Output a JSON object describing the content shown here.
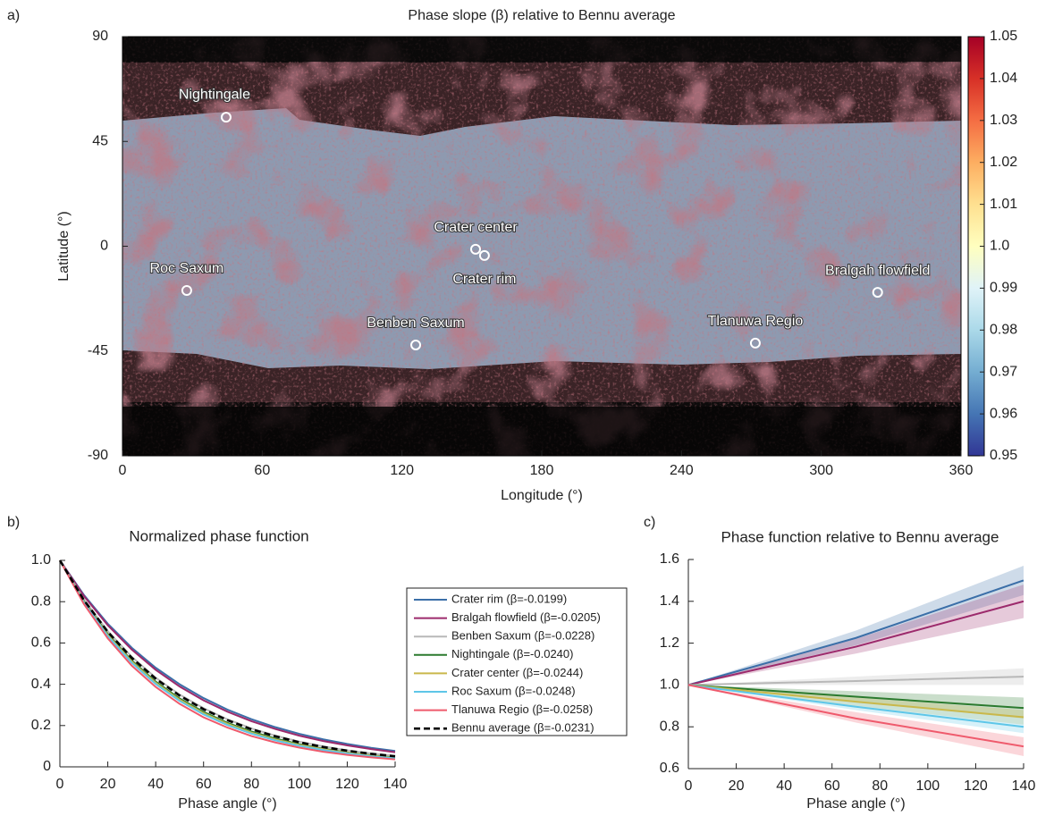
{
  "chart_data": [
    {
      "type": "map",
      "panel": "a)",
      "title": "Phase slope (β) relative to Bennu average",
      "xlabel": "Longitude (°)",
      "ylabel": "Latitude (°)",
      "xlim": [
        0,
        360
      ],
      "ylim": [
        -90,
        90
      ],
      "xticks": [
        0,
        60,
        120,
        180,
        240,
        300,
        360
      ],
      "yticks": [
        90,
        45,
        0,
        -45,
        -90
      ],
      "colormap": "RdYlBu_r",
      "clim": [
        0.95,
        1.05
      ],
      "cticks": [
        0.95,
        0.96,
        0.97,
        0.98,
        0.99,
        {
          "value": 1,
          "label": "1.0"
        },
        1.01,
        1.02,
        1.03,
        1.04,
        1.05
      ],
      "sites": {
        "labels": [
          "Nightingale",
          "Crater center",
          "Crater rim",
          "Roc Saxum",
          "Benben Saxum",
          "Tlanuwa Regio",
          "Bralgah flowfield"
        ],
        "x": [
          44.5,
          151.6,
          155.4,
          27.6,
          125.9,
          271.7,
          324.2
        ],
        "y": [
          55.4,
          -1.3,
          -4.0,
          -19.0,
          -42.4,
          -41.6,
          -19.8
        ]
      }
    },
    {
      "type": "line",
      "panel": "b)",
      "title": "Normalized phase function",
      "xlabel": "Phase angle (°)",
      "xlim": [
        0,
        140
      ],
      "ylim": [
        0,
        1
      ],
      "xticks": [
        0,
        20,
        40,
        60,
        80,
        100,
        120,
        140
      ],
      "yticks": [
        0,
        0.2,
        0.4,
        0.6,
        0.8,
        {
          "value": 1,
          "label": "1.0"
        }
      ],
      "legend": "right",
      "x": [
        0,
        10,
        20,
        30,
        40,
        50,
        60,
        70,
        80,
        90,
        100,
        110,
        120,
        130,
        140
      ],
      "series": [
        {
          "name": "Crater rim (β=-0.0199)",
          "color": "#3b6fa8",
          "values": [
            1,
            0.833,
            0.693,
            0.577,
            0.48,
            0.4,
            0.333,
            0.277,
            0.231,
            0.192,
            0.16,
            0.133,
            0.111,
            0.092,
            0.077
          ]
        },
        {
          "name": "Bralgah flowfield (β=-0.0205)",
          "color": "#9c2a6c",
          "values": [
            1,
            0.828,
            0.686,
            0.568,
            0.47,
            0.389,
            0.322,
            0.267,
            0.221,
            0.183,
            0.151,
            0.125,
            0.104,
            0.086,
            0.071
          ]
        },
        {
          "name": "Benben Saxum (β=-0.0228)",
          "color": "#b8b8b8",
          "values": [
            1,
            0.811,
            0.657,
            0.533,
            0.432,
            0.35,
            0.284,
            0.23,
            0.186,
            0.151,
            0.122,
            0.099,
            0.08,
            0.065,
            0.053
          ]
        },
        {
          "name": "Nightingale (β=-0.0240)",
          "color": "#2b7a2e",
          "values": [
            1,
            0.802,
            0.643,
            0.515,
            0.413,
            0.331,
            0.266,
            0.213,
            0.171,
            0.137,
            0.11,
            0.088,
            0.07,
            0.056,
            0.045
          ]
        },
        {
          "name": "Crater center (β=-0.0244)",
          "color": "#c9b84b",
          "values": [
            1,
            0.799,
            0.638,
            0.51,
            0.407,
            0.325,
            0.26,
            0.208,
            0.166,
            0.132,
            0.106,
            0.085,
            0.068,
            0.054,
            0.043
          ]
        },
        {
          "name": "Roc Saxum (β=-0.0248)",
          "color": "#5ec6e8",
          "values": [
            1,
            0.796,
            0.633,
            0.504,
            0.401,
            0.319,
            0.254,
            0.202,
            0.161,
            0.128,
            0.102,
            0.081,
            0.065,
            0.051,
            0.041
          ]
        },
        {
          "name": "Tlanuwa Regio (β=-0.0258)",
          "color": "#ef5a6c",
          "values": [
            1,
            0.789,
            0.622,
            0.49,
            0.387,
            0.305,
            0.24,
            0.19,
            0.149,
            0.118,
            0.093,
            0.073,
            0.058,
            0.046,
            0.036
          ]
        },
        {
          "name": "Bennu average (β=-0.0231)",
          "color": "#000000",
          "dashed": true,
          "values": [
            1,
            0.808,
            0.654,
            0.528,
            0.427,
            0.345,
            0.279,
            0.226,
            0.182,
            0.148,
            0.119,
            0.096,
            0.078,
            0.063,
            0.051
          ]
        }
      ]
    },
    {
      "type": "line",
      "panel": "c)",
      "title": "Phase function relative to Bennu average",
      "xlabel": "Phase angle (°)",
      "xlim": [
        0,
        140
      ],
      "ylim": [
        0.6,
        1.6
      ],
      "xticks": [
        0,
        20,
        40,
        60,
        80,
        100,
        120,
        140
      ],
      "yticks": [
        0.6,
        0.8,
        {
          "value": 1,
          "label": "1.0"
        },
        1.2,
        1.4,
        1.6
      ],
      "x": [
        0,
        70,
        140
      ],
      "series": [
        {
          "color": "#3b6fa8",
          "values": [
            1,
            1.225,
            1.5
          ],
          "lower": [
            1,
            1.19,
            1.43
          ],
          "upper": [
            1,
            1.26,
            1.57
          ]
        },
        {
          "color": "#9c2a6c",
          "values": [
            1,
            1.183,
            1.4
          ],
          "lower": [
            1,
            1.15,
            1.32
          ],
          "upper": [
            1,
            1.22,
            1.48
          ]
        },
        {
          "color": "#b8b8b8",
          "values": [
            1,
            1.019,
            1.04
          ],
          "lower": [
            1,
            1.0,
            1.0
          ],
          "upper": [
            1,
            1.04,
            1.08
          ]
        },
        {
          "color": "#2b7a2e",
          "values": [
            1,
            0.944,
            0.89
          ],
          "lower": [
            1,
            0.92,
            0.84
          ],
          "upper": [
            1,
            0.97,
            0.94
          ]
        },
        {
          "color": "#c9b84b",
          "values": [
            1,
            0.92,
            0.846
          ],
          "lower": [
            1,
            0.9,
            0.81
          ],
          "upper": [
            1,
            0.94,
            0.88
          ]
        },
        {
          "color": "#5ec6e8",
          "values": [
            1,
            0.896,
            0.8
          ],
          "lower": [
            1,
            0.88,
            0.77
          ],
          "upper": [
            1,
            0.92,
            0.84
          ]
        },
        {
          "color": "#ef5a6c",
          "values": [
            1,
            0.84,
            0.706
          ],
          "lower": [
            1,
            0.82,
            0.66
          ],
          "upper": [
            1,
            0.87,
            0.75
          ]
        }
      ]
    }
  ]
}
